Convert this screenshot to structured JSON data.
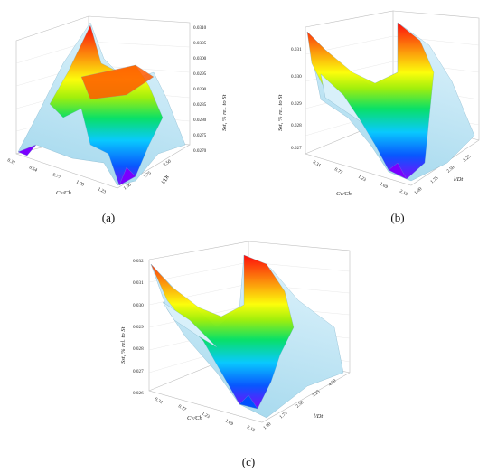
{
  "chart_data": [
    {
      "panel": "a",
      "type": "surface3d",
      "caption": "(a)",
      "xlabel": "Cv/Ch",
      "ylabel": "l/Dt",
      "zlabel": "Sst, % rel. to St",
      "zlim": [
        0.027,
        0.031
      ],
      "z_ticks": [
        "0.0270",
        "0.0275",
        "0.0280",
        "0.0285",
        "0.0290",
        "0.0295",
        "0.0300",
        "0.0305",
        "0.0310"
      ],
      "x_ticks": [
        "0.31",
        "0.54",
        "0.77",
        "1.00",
        "1.23"
      ],
      "y_ticks": [
        "1.00",
        "1.75",
        "2.50"
      ],
      "colormap": [
        "#7a00ff",
        "#0050ff",
        "#00c8ff",
        "#00e060",
        "#a0f000",
        "#ffff00",
        "#ff9000",
        "#ff0000"
      ],
      "grid": true
    },
    {
      "panel": "b",
      "type": "surface3d",
      "caption": "(b)",
      "xlabel": "Cv/Ch",
      "ylabel": "l/Dt",
      "zlabel": "Sst, % rel. to St",
      "zlim": [
        0.027,
        0.031
      ],
      "z_ticks": [
        "0.027",
        "0.028",
        "0.029",
        "0.030",
        "0.031"
      ],
      "x_ticks": [
        "0.31",
        "0.77",
        "1.23",
        "1.69",
        "2.15"
      ],
      "y_ticks": [
        "1.00",
        "1.75",
        "2.50",
        "3.25"
      ],
      "colormap": [
        "#7a00ff",
        "#0050ff",
        "#00c8ff",
        "#00e060",
        "#a0f000",
        "#ffff00",
        "#ff9000",
        "#ff0000"
      ],
      "grid": true
    },
    {
      "panel": "c",
      "type": "surface3d",
      "caption": "(c)",
      "xlabel": "Cv/Ch",
      "ylabel": "l/Dt",
      "zlabel": "Sst, % rel. to St",
      "zlim": [
        0.026,
        0.032
      ],
      "z_ticks": [
        "0.026",
        "0.027",
        "0.028",
        "0.029",
        "0.030",
        "0.031",
        "0.032"
      ],
      "x_ticks": [
        "0.31",
        "0.77",
        "1.23",
        "1.69",
        "2.15"
      ],
      "y_ticks": [
        "1.00",
        "1.75",
        "2.50",
        "3.25",
        "4.00"
      ],
      "colormap": [
        "#7a00ff",
        "#0050ff",
        "#00c8ff",
        "#00e060",
        "#a0f000",
        "#ffff00",
        "#ff9000",
        "#ff0000"
      ],
      "grid": true
    }
  ]
}
